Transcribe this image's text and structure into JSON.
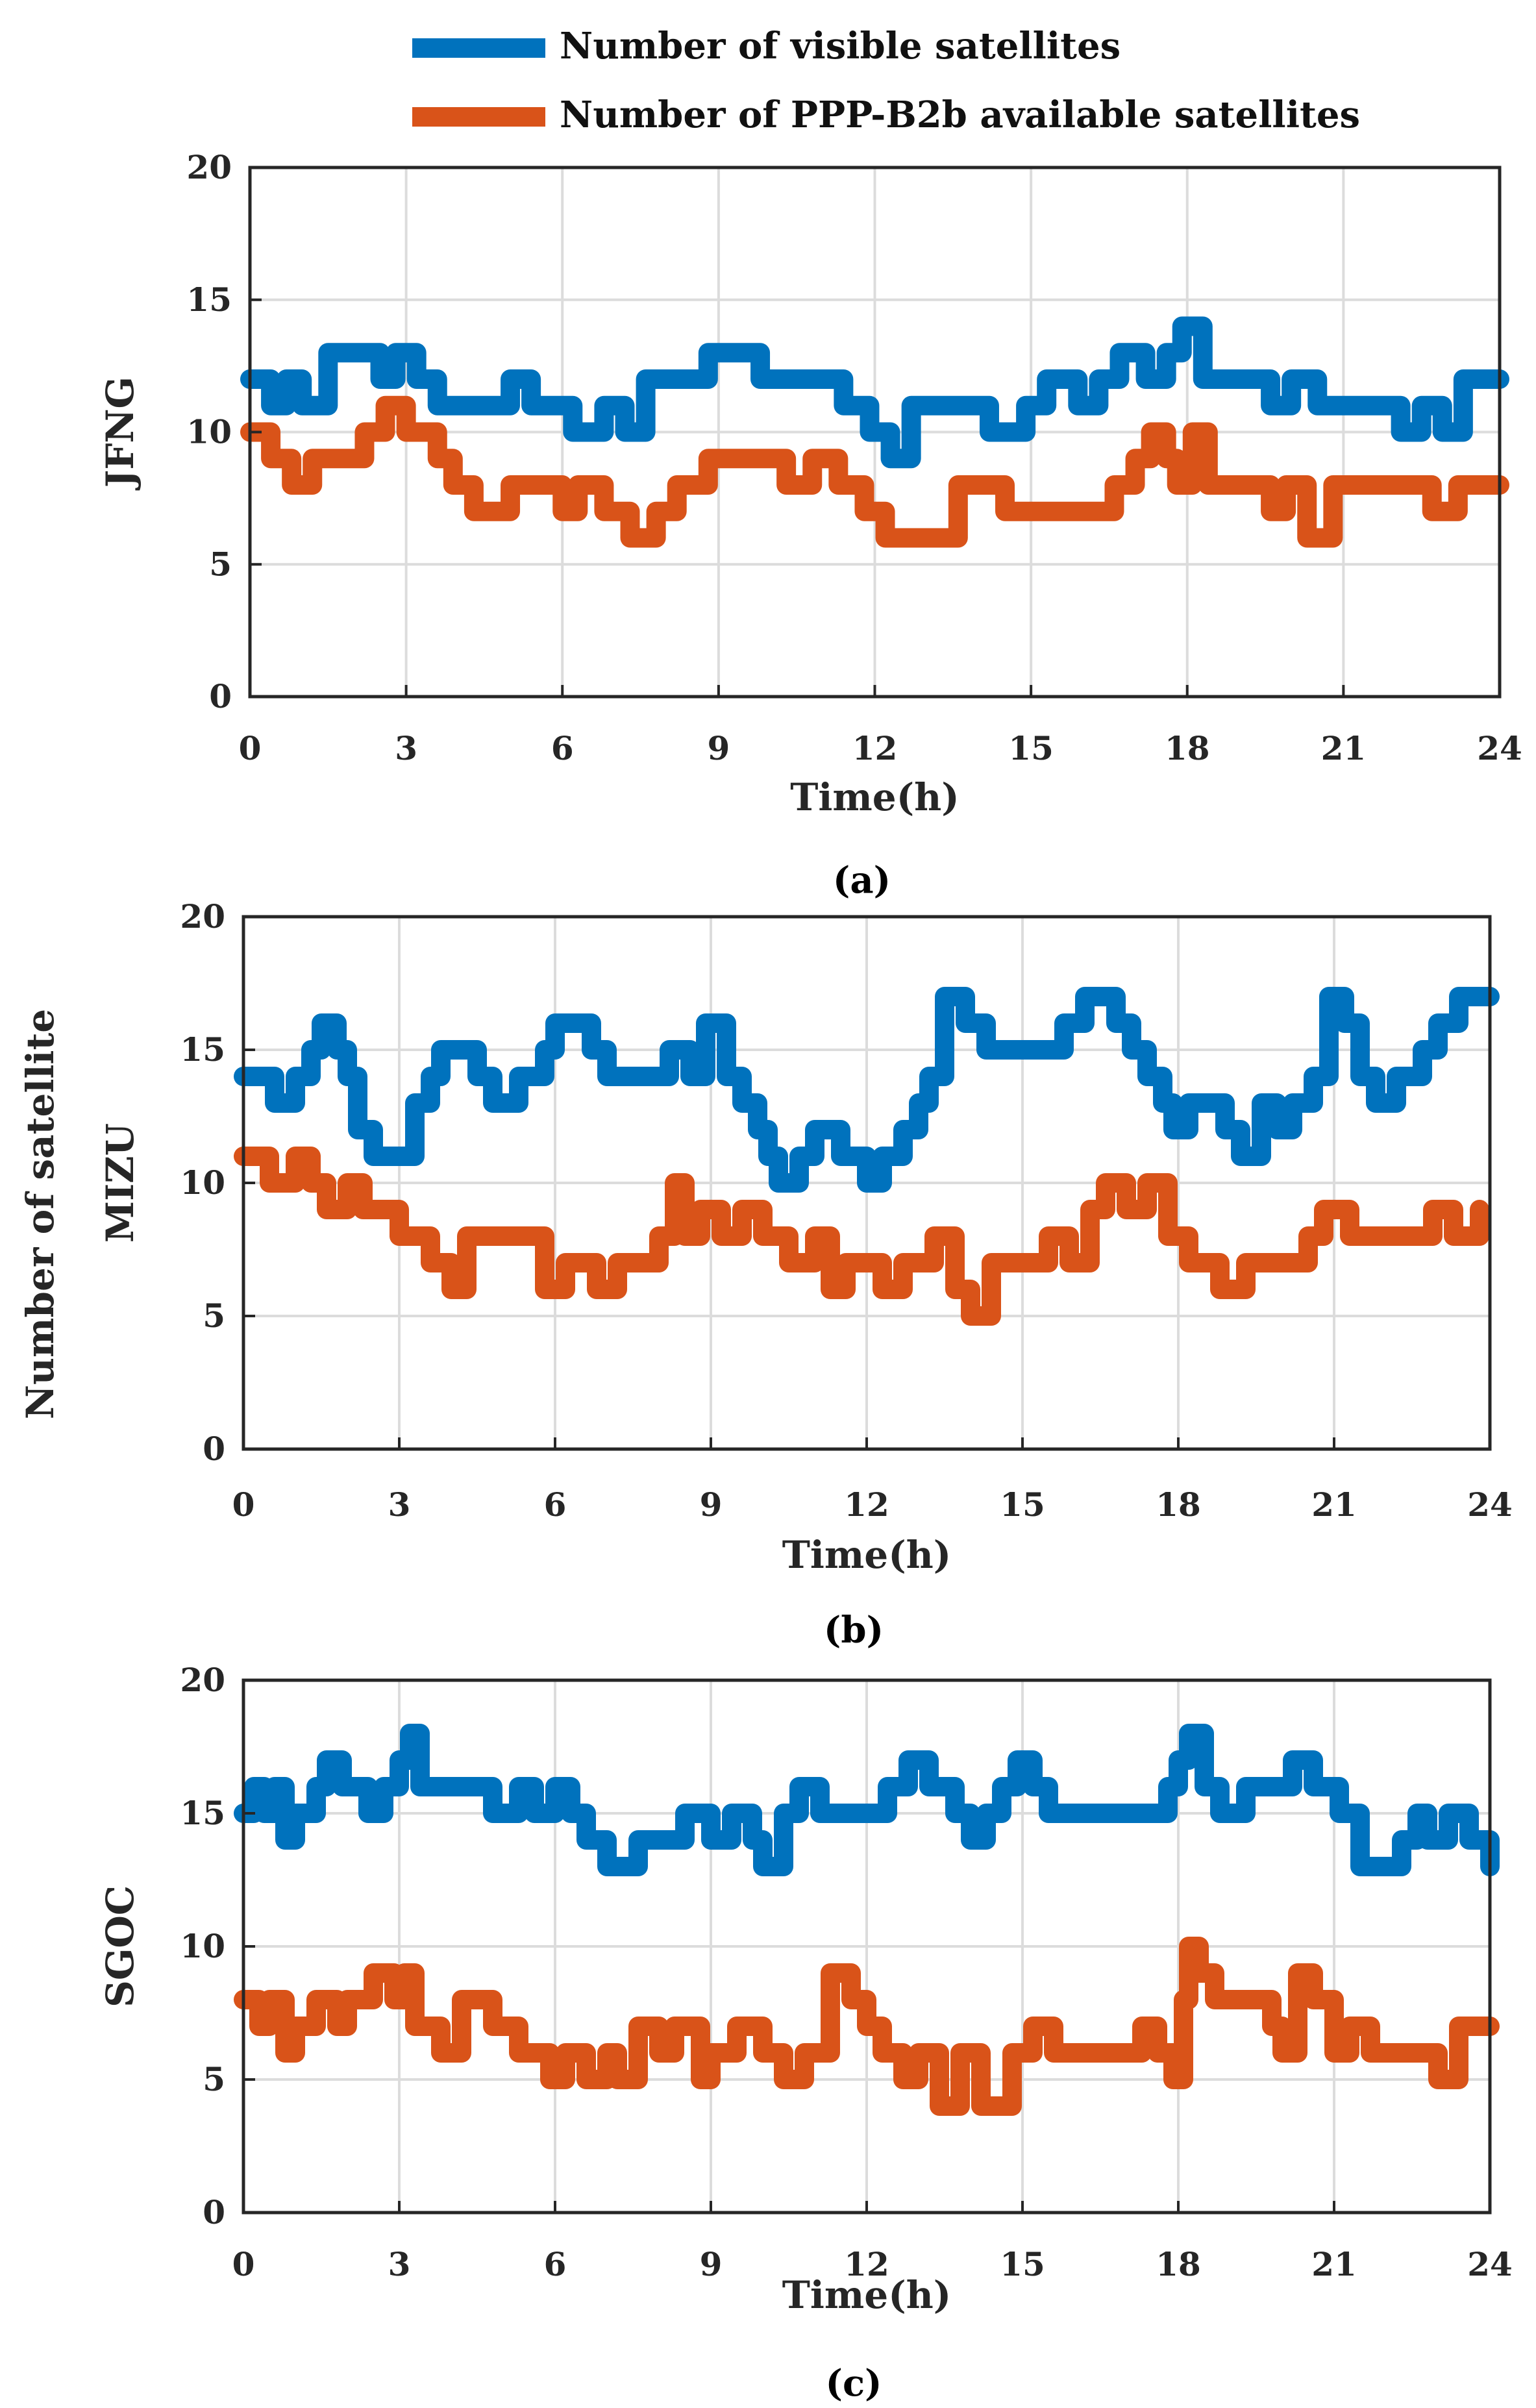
{
  "legend": {
    "visible_label": "Number of visible satellites",
    "available_label": "Number of PPP-B2b available satellites"
  },
  "shared_ylabel": "Number of satellite",
  "colors": {
    "visible": "#0072BD",
    "available": "#D95319",
    "grid": "#DCDCDC",
    "axis": "#262626"
  },
  "chart_data": [
    {
      "type": "line",
      "station": "JFNG",
      "caption": "(a)",
      "xlabel": "Time(h)",
      "ylabel": "JFNG",
      "xlim": [
        0,
        24
      ],
      "ylim": [
        0,
        20
      ],
      "xticks": [
        0,
        3,
        6,
        9,
        12,
        15,
        18,
        21,
        24
      ],
      "yticks": [
        0,
        5,
        10,
        15,
        20
      ],
      "grid": true,
      "series": [
        {
          "name": "Number of visible satellites",
          "x": [
            0,
            0.4,
            0.7,
            1.0,
            1.5,
            2.5,
            2.8,
            3.2,
            3.6,
            4.0,
            5.0,
            5.4,
            5.8,
            6.2,
            6.8,
            7.2,
            7.6,
            8.2,
            8.8,
            9.8,
            10.5,
            11.4,
            11.9,
            12.3,
            12.7,
            13.6,
            14.2,
            14.9,
            15.3,
            15.9,
            16.3,
            16.7,
            17.2,
            17.6,
            17.9,
            18.3,
            19.2,
            19.6,
            20.0,
            20.5,
            21.2,
            21.8,
            22.1,
            22.5,
            22.9,
            23.3,
            24.0
          ],
          "values": [
            12,
            11,
            12,
            11,
            13,
            12,
            13,
            12,
            11,
            11,
            12,
            11,
            11,
            10,
            11,
            10,
            12,
            12,
            13,
            12,
            12,
            11,
            10,
            9,
            11,
            11,
            10,
            11,
            12,
            11,
            12,
            13,
            12,
            13,
            14,
            12,
            12,
            11,
            12,
            11,
            11,
            11,
            10,
            11,
            10,
            12,
            12
          ]
        },
        {
          "name": "Number of PPP-B2b available satellites",
          "x": [
            0,
            0.4,
            0.8,
            1.2,
            1.8,
            2.2,
            2.6,
            3.0,
            3.6,
            3.9,
            4.3,
            5.0,
            5.6,
            6.0,
            6.3,
            6.8,
            7.3,
            7.8,
            8.2,
            8.8,
            9.8,
            10.3,
            10.8,
            11.3,
            11.8,
            12.2,
            13.0,
            13.6,
            14.0,
            14.5,
            15.0,
            15.5,
            16.2,
            16.6,
            17.0,
            17.3,
            17.6,
            17.8,
            18.1,
            18.4,
            19.0,
            19.6,
            19.9,
            20.3,
            20.8,
            22.0,
            22.7,
            23.2,
            24.0
          ],
          "values": [
            10,
            9,
            8,
            9,
            9,
            10,
            11,
            10,
            9,
            8,
            7,
            8,
            8,
            7,
            8,
            7,
            6,
            7,
            8,
            9,
            9,
            8,
            9,
            8,
            7,
            6,
            6,
            8,
            8,
            7,
            7,
            7,
            7,
            8,
            9,
            10,
            9,
            8,
            10,
            8,
            8,
            7,
            8,
            6,
            8,
            8,
            7,
            8,
            8
          ]
        }
      ]
    },
    {
      "type": "line",
      "station": "MIZU",
      "caption": "(b)",
      "xlabel": "Time(h)",
      "ylabel": "MIZU",
      "xlim": [
        0,
        24
      ],
      "ylim": [
        0,
        20
      ],
      "xticks": [
        0,
        3,
        6,
        9,
        12,
        15,
        18,
        21,
        24
      ],
      "yticks": [
        0,
        5,
        10,
        15,
        20
      ],
      "grid": true,
      "series": [
        {
          "name": "Number of visible satellites",
          "x": [
            0,
            0.6,
            1.0,
            1.3,
            1.5,
            1.8,
            2.0,
            2.2,
            2.5,
            3.3,
            3.6,
            3.8,
            4.5,
            4.8,
            5.3,
            5.8,
            6.0,
            6.3,
            6.7,
            7.0,
            8.2,
            8.6,
            8.9,
            9.3,
            9.6,
            9.9,
            10.1,
            10.3,
            10.7,
            11.0,
            11.5,
            12.0,
            12.3,
            12.7,
            13.0,
            13.2,
            13.5,
            13.9,
            14.3,
            15.4,
            15.8,
            16.2,
            16.8,
            17.1,
            17.4,
            17.7,
            17.9,
            18.2,
            18.9,
            19.2,
            19.6,
            19.9,
            20.2,
            20.6,
            20.9,
            21.2,
            21.5,
            21.8,
            22.2,
            22.7,
            23.0,
            23.4,
            24.0
          ],
          "values": [
            14,
            13,
            14,
            15,
            16,
            15,
            14,
            12,
            11,
            13,
            14,
            15,
            14,
            13,
            14,
            15,
            16,
            16,
            15,
            14,
            15,
            14,
            16,
            14,
            13,
            12,
            11,
            10,
            11,
            12,
            11,
            10,
            11,
            12,
            13,
            14,
            17,
            16,
            15,
            15,
            16,
            17,
            16,
            15,
            14,
            13,
            12,
            13,
            12,
            11,
            13,
            12,
            13,
            14,
            17,
            16,
            14,
            13,
            14,
            15,
            16,
            17,
            17
          ]
        },
        {
          "name": "Number of PPP-B2b available satellites",
          "x": [
            0,
            0.5,
            1.0,
            1.3,
            1.6,
            2.0,
            2.3,
            3.0,
            3.6,
            4.0,
            4.3,
            5.0,
            5.8,
            6.2,
            6.8,
            7.2,
            8.0,
            8.3,
            8.5,
            8.8,
            9.2,
            9.6,
            10.0,
            10.5,
            11.0,
            11.3,
            11.6,
            12.0,
            12.3,
            12.7,
            13.0,
            13.3,
            13.7,
            14.0,
            14.4,
            15.0,
            15.5,
            15.9,
            16.3,
            16.6,
            17.0,
            17.4,
            17.8,
            18.2,
            18.8,
            19.3,
            20.0,
            20.5,
            20.8,
            21.3,
            22.5,
            22.9,
            23.3,
            23.8
          ],
          "values": [
            11,
            10,
            11,
            10,
            9,
            10,
            9,
            8,
            7,
            6,
            8,
            8,
            6,
            7,
            6,
            7,
            8,
            10,
            8,
            9,
            8,
            9,
            8,
            7,
            8,
            6,
            7,
            7,
            6,
            7,
            7,
            8,
            6,
            5,
            7,
            7,
            8,
            7,
            9,
            10,
            9,
            10,
            8,
            7,
            6,
            7,
            7,
            8,
            9,
            8,
            8,
            9,
            8,
            9
          ]
        }
      ]
    },
    {
      "type": "line",
      "station": "SGOC",
      "caption": "(c)",
      "xlabel": "Time(h)",
      "ylabel": "SGOC",
      "xlim": [
        0,
        24
      ],
      "ylim": [
        0,
        20
      ],
      "xticks": [
        0,
        3,
        6,
        9,
        12,
        15,
        18,
        21,
        24
      ],
      "yticks": [
        0,
        5,
        10,
        15,
        20
      ],
      "grid": true,
      "series": [
        {
          "name": "Number of visible satellites",
          "x": [
            0,
            0.2,
            0.4,
            0.6,
            0.8,
            1.0,
            1.4,
            1.6,
            1.9,
            2.4,
            2.7,
            3.0,
            3.2,
            3.4,
            4.0,
            4.8,
            5.3,
            5.6,
            6.0,
            6.3,
            6.6,
            7.0,
            7.6,
            8.0,
            8.5,
            9.0,
            9.4,
            9.8,
            10.0,
            10.4,
            10.7,
            11.1,
            11.6,
            12.0,
            12.4,
            12.8,
            13.2,
            13.7,
            14.0,
            14.3,
            14.6,
            14.9,
            15.2,
            15.5,
            16.0,
            16.5,
            17.0,
            17.5,
            17.8,
            18.0,
            18.2,
            18.5,
            18.8,
            19.3,
            19.9,
            20.2,
            20.6,
            21.1,
            21.5,
            22.0,
            22.3,
            22.6,
            22.8,
            23.2,
            23.6,
            24.0
          ],
          "values": [
            15,
            16,
            15,
            16,
            14,
            15,
            16,
            17,
            16,
            15,
            16,
            17,
            18,
            16,
            16,
            15,
            16,
            15,
            16,
            15,
            14,
            13,
            14,
            14,
            15,
            14,
            15,
            14,
            13,
            15,
            16,
            15,
            15,
            15,
            16,
            17,
            16,
            15,
            14,
            15,
            16,
            17,
            16,
            15,
            15,
            15,
            15,
            15,
            16,
            17,
            18,
            16,
            15,
            16,
            16,
            17,
            16,
            15,
            13,
            13,
            14,
            15,
            14,
            15,
            14,
            13
          ]
        },
        {
          "name": "Number of PPP-B2b available satellites",
          "x": [
            0,
            0.3,
            0.5,
            0.8,
            1.0,
            1.4,
            1.8,
            2.0,
            2.5,
            2.9,
            3.1,
            3.3,
            3.8,
            4.2,
            4.8,
            5.3,
            5.5,
            5.9,
            6.2,
            6.6,
            7.0,
            7.2,
            7.6,
            8.0,
            8.3,
            8.8,
            9.0,
            9.5,
            10.0,
            10.4,
            10.8,
            11.3,
            11.7,
            12.0,
            12.3,
            12.7,
            13.0,
            13.4,
            13.8,
            14.2,
            14.8,
            15.2,
            15.6,
            16.2,
            16.6,
            17.0,
            17.3,
            17.6,
            17.9,
            18.1,
            18.2,
            18.4,
            18.7,
            19.2,
            19.8,
            20.0,
            20.3,
            20.6,
            21.0,
            21.3,
            21.7,
            22.2,
            22.8,
            23.0,
            23.4,
            24.0
          ],
          "values": [
            8,
            7,
            8,
            6,
            7,
            8,
            7,
            8,
            9,
            8,
            9,
            7,
            6,
            8,
            7,
            6,
            6,
            5,
            6,
            5,
            6,
            5,
            7,
            6,
            7,
            5,
            6,
            7,
            6,
            5,
            6,
            9,
            8,
            7,
            6,
            5,
            6,
            4,
            6,
            4,
            6,
            7,
            6,
            6,
            6,
            6,
            7,
            6,
            5,
            8,
            10,
            9,
            8,
            8,
            7,
            6,
            9,
            8,
            6,
            7,
            6,
            6,
            6,
            5,
            7,
            7
          ]
        }
      ]
    }
  ]
}
